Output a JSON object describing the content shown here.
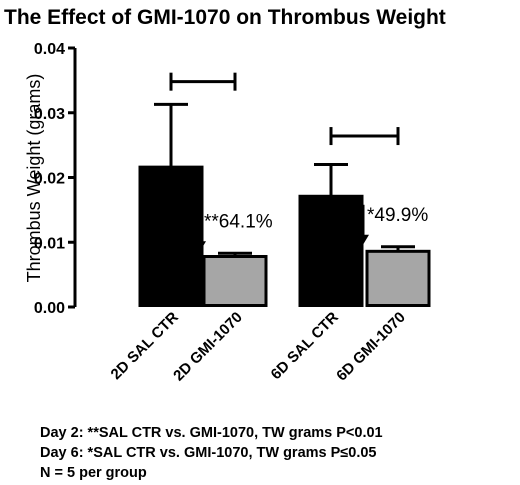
{
  "chart_data": {
    "type": "bar",
    "title": "The Effect of GMI-1070 on Thrombus Weight",
    "xlabel": "",
    "ylabel": "Thrombus Weight (grams)",
    "ylim": [
      0,
      0.04
    ],
    "yticks": [
      "0.00",
      "0.01",
      "0.02",
      "0.03",
      "0.04"
    ],
    "grid": false,
    "categories": [
      "2D SAL CTR",
      "2D GMI-1070",
      "6D SAL CTR",
      "6D GMI-1070"
    ],
    "values": [
      0.0216,
      0.0078,
      0.0171,
      0.0086
    ],
    "error": [
      0.0097,
      0.0005,
      0.0049,
      0.0007
    ],
    "bar_colors": [
      "#000000",
      "#a6a6a6",
      "#000000",
      "#a6a6a6"
    ],
    "annotations": [
      {
        "text": "**64.1%",
        "category": 1
      },
      {
        "text": "*49.9%",
        "category": 3
      }
    ],
    "brackets": [
      {
        "from": 0,
        "to": 1,
        "y": 0.0348
      },
      {
        "from": 2,
        "to": 3,
        "y": 0.0264
      }
    ]
  },
  "footnotes": [
    "Day 2: **SAL CTR vs. GMI-1070, TW grams P<0.01",
    "Day 6: *SAL CTR vs. GMI-1070, TW grams P≤0.05",
    "N = 5 per group"
  ]
}
